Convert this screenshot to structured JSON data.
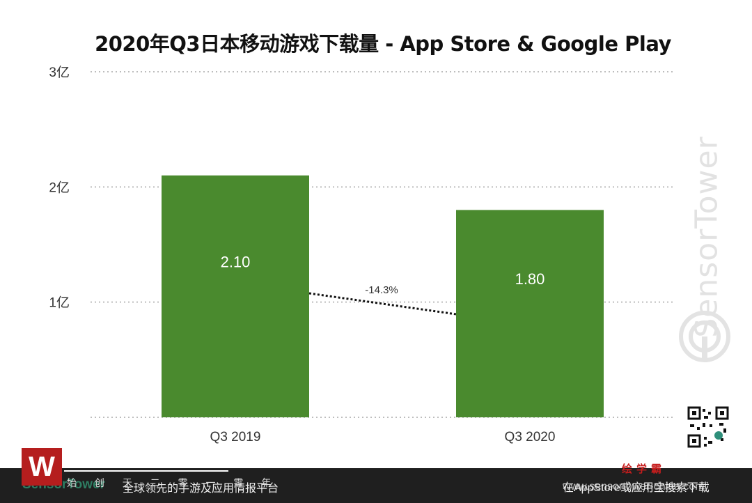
{
  "title": "2020年Q3日本移动游戏下载量 - App Store & Google Play",
  "chart_data": {
    "type": "bar",
    "categories": [
      "Q3  2019",
      "Q3 2020"
    ],
    "values": [
      2.1,
      1.8
    ],
    "value_labels": [
      "2.10",
      "1.80"
    ],
    "ylim": [
      0,
      3
    ],
    "yticks": [
      {
        "value": 1,
        "label": "1亿"
      },
      {
        "value": 2,
        "label": "2亿"
      },
      {
        "value": 3,
        "label": "3亿"
      }
    ],
    "grid": true,
    "bar_color": "#4a8a2e",
    "annotation": {
      "text": "-14.3%",
      "style": "dotted-line between bar tops"
    }
  },
  "watermark": {
    "text": "SensorTower"
  },
  "footer": {
    "logo_text": "SensorTower",
    "tagline": "全球领先的手游及应用情报平台",
    "spaced_text": "始 创 于 二 零 一 零 年",
    "right_text": "在AppStore或应用宝搜索下载",
    "url": "www.sensortower-china.com",
    "badge_letter": "W",
    "brand_name": "绘学霸"
  }
}
